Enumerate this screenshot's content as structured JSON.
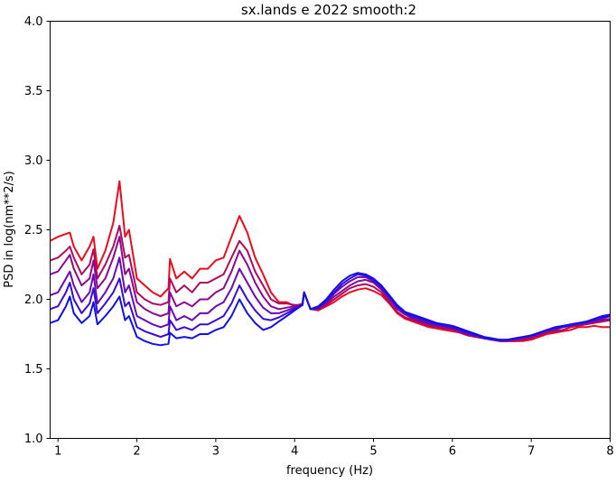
{
  "chart_data": {
    "type": "line",
    "title": "sx.lands e 2022 smooth:2",
    "xlabel": "frequency (Hz)",
    "ylabel": "PSD in log(nm**2/s)",
    "xlim": [
      0.9,
      8.0
    ],
    "ylim": [
      1.0,
      4.0
    ],
    "xticks": [
      1,
      2,
      3,
      4,
      5,
      6,
      7,
      8
    ],
    "yticks": [
      1.0,
      1.5,
      2.0,
      2.5,
      3.0,
      3.5,
      4.0
    ],
    "xtick_labels": [
      "1",
      "2",
      "3",
      "4",
      "5",
      "6",
      "7",
      "8"
    ],
    "ytick_labels": [
      "1.0",
      "1.5",
      "2.0",
      "2.5",
      "3.0",
      "3.5",
      "4.0"
    ],
    "grid": false,
    "legend": "none",
    "x": [
      0.9,
      1.0,
      1.1,
      1.15,
      1.2,
      1.3,
      1.4,
      1.45,
      1.5,
      1.6,
      1.7,
      1.78,
      1.85,
      1.9,
      2.0,
      2.1,
      2.2,
      2.3,
      2.4,
      2.42,
      2.5,
      2.6,
      2.7,
      2.8,
      2.9,
      3.0,
      3.1,
      3.2,
      3.3,
      3.4,
      3.5,
      3.6,
      3.7,
      3.8,
      3.9,
      4.0,
      4.1,
      4.12,
      4.2,
      4.3,
      4.4,
      4.5,
      4.6,
      4.7,
      4.8,
      4.9,
      5.0,
      5.1,
      5.2,
      5.3,
      5.4,
      5.5,
      5.6,
      5.7,
      5.8,
      5.9,
      6.0,
      6.1,
      6.2,
      6.3,
      6.4,
      6.5,
      6.6,
      6.7,
      6.8,
      6.9,
      7.0,
      7.1,
      7.2,
      7.3,
      7.4,
      7.5,
      7.6,
      7.7,
      7.8,
      7.9,
      8.0
    ],
    "series": [
      {
        "color": "#ee0a1c",
        "values": [
          2.42,
          2.45,
          2.47,
          2.48,
          2.38,
          2.28,
          2.38,
          2.45,
          2.22,
          2.35,
          2.55,
          2.85,
          2.45,
          2.5,
          2.15,
          2.1,
          2.05,
          2.02,
          2.08,
          2.29,
          2.15,
          2.2,
          2.15,
          2.22,
          2.22,
          2.28,
          2.3,
          2.45,
          2.6,
          2.48,
          2.3,
          2.18,
          2.05,
          1.98,
          1.98,
          1.95,
          1.97,
          2.05,
          1.93,
          1.92,
          1.95,
          1.98,
          2.02,
          2.05,
          2.07,
          2.08,
          2.06,
          2.03,
          1.97,
          1.9,
          1.86,
          1.84,
          1.82,
          1.8,
          1.79,
          1.78,
          1.77,
          1.76,
          1.74,
          1.73,
          1.72,
          1.71,
          1.7,
          1.7,
          1.7,
          1.7,
          1.71,
          1.73,
          1.75,
          1.76,
          1.77,
          1.78,
          1.8,
          1.8,
          1.81,
          1.8,
          1.8
        ]
      },
      {
        "color": "#b00a5e",
        "values": [
          2.28,
          2.3,
          2.35,
          2.38,
          2.3,
          2.18,
          2.25,
          2.36,
          2.15,
          2.25,
          2.38,
          2.53,
          2.3,
          2.32,
          2.05,
          2.0,
          1.97,
          1.96,
          1.98,
          2.15,
          2.05,
          2.1,
          2.05,
          2.12,
          2.12,
          2.15,
          2.18,
          2.3,
          2.42,
          2.35,
          2.2,
          2.1,
          2.0,
          1.97,
          1.97,
          1.96,
          1.96,
          2.05,
          1.93,
          1.93,
          1.96,
          2.0,
          2.04,
          2.08,
          2.1,
          2.11,
          2.09,
          2.05,
          1.98,
          1.91,
          1.87,
          1.85,
          1.83,
          1.81,
          1.8,
          1.79,
          1.78,
          1.76,
          1.74,
          1.73,
          1.72,
          1.71,
          1.7,
          1.7,
          1.7,
          1.71,
          1.72,
          1.74,
          1.76,
          1.77,
          1.78,
          1.8,
          1.81,
          1.82,
          1.83,
          1.84,
          1.85
        ]
      },
      {
        "color": "#8a0a90",
        "values": [
          2.18,
          2.2,
          2.28,
          2.32,
          2.22,
          2.1,
          2.15,
          2.28,
          2.08,
          2.15,
          2.3,
          2.45,
          2.18,
          2.22,
          1.98,
          1.93,
          1.9,
          1.88,
          1.9,
          2.05,
          1.95,
          1.98,
          1.95,
          2.0,
          2.0,
          2.05,
          2.08,
          2.2,
          2.35,
          2.25,
          2.12,
          2.02,
          1.95,
          1.93,
          1.94,
          1.95,
          1.96,
          2.05,
          1.93,
          1.93,
          1.97,
          2.02,
          2.06,
          2.1,
          2.13,
          2.14,
          2.12,
          2.07,
          2.0,
          1.93,
          1.89,
          1.86,
          1.84,
          1.82,
          1.81,
          1.8,
          1.79,
          1.77,
          1.75,
          1.74,
          1.72,
          1.71,
          1.7,
          1.7,
          1.71,
          1.72,
          1.73,
          1.75,
          1.77,
          1.78,
          1.8,
          1.81,
          1.82,
          1.83,
          1.84,
          1.85,
          1.86
        ]
      },
      {
        "color": "#6a0ab8",
        "values": [
          2.03,
          2.05,
          2.15,
          2.2,
          2.1,
          1.98,
          2.05,
          2.18,
          1.97,
          2.05,
          2.15,
          2.3,
          2.05,
          2.1,
          1.88,
          1.85,
          1.82,
          1.8,
          1.82,
          1.95,
          1.85,
          1.88,
          1.85,
          1.9,
          1.9,
          1.95,
          1.98,
          2.08,
          2.22,
          2.12,
          2.02,
          1.94,
          1.9,
          1.9,
          1.92,
          1.94,
          1.96,
          2.05,
          1.93,
          1.94,
          1.98,
          2.04,
          2.09,
          2.13,
          2.16,
          2.16,
          2.13,
          2.08,
          2.01,
          1.94,
          1.9,
          1.87,
          1.85,
          1.83,
          1.82,
          1.81,
          1.79,
          1.77,
          1.75,
          1.74,
          1.72,
          1.71,
          1.7,
          1.71,
          1.72,
          1.73,
          1.74,
          1.76,
          1.78,
          1.79,
          1.8,
          1.81,
          1.82,
          1.83,
          1.85,
          1.86,
          1.88
        ]
      },
      {
        "color": "#3a0ad8",
        "values": [
          1.93,
          1.95,
          2.05,
          2.12,
          2.0,
          1.9,
          1.97,
          2.08,
          1.9,
          1.97,
          2.05,
          2.15,
          1.95,
          1.98,
          1.8,
          1.77,
          1.75,
          1.73,
          1.75,
          1.85,
          1.78,
          1.8,
          1.78,
          1.82,
          1.82,
          1.85,
          1.88,
          1.97,
          2.1,
          2.0,
          1.92,
          1.86,
          1.85,
          1.87,
          1.9,
          1.93,
          1.96,
          2.05,
          1.93,
          1.94,
          1.99,
          2.05,
          2.11,
          2.15,
          2.18,
          2.17,
          2.14,
          2.09,
          2.02,
          1.95,
          1.9,
          1.88,
          1.86,
          1.84,
          1.82,
          1.81,
          1.8,
          1.78,
          1.76,
          1.74,
          1.72,
          1.71,
          1.71,
          1.71,
          1.72,
          1.73,
          1.74,
          1.76,
          1.78,
          1.79,
          1.8,
          1.82,
          1.83,
          1.84,
          1.85,
          1.87,
          1.88
        ]
      },
      {
        "color": "#1010e8",
        "values": [
          1.83,
          1.85,
          1.95,
          2.02,
          1.9,
          1.83,
          1.88,
          1.98,
          1.82,
          1.88,
          1.95,
          2.02,
          1.85,
          1.88,
          1.73,
          1.7,
          1.68,
          1.67,
          1.68,
          1.76,
          1.72,
          1.73,
          1.72,
          1.75,
          1.75,
          1.78,
          1.8,
          1.88,
          2.0,
          1.9,
          1.83,
          1.78,
          1.8,
          1.84,
          1.88,
          1.92,
          1.96,
          2.05,
          1.93,
          1.95,
          2.0,
          2.07,
          2.13,
          2.17,
          2.19,
          2.18,
          2.15,
          2.1,
          2.03,
          1.96,
          1.91,
          1.89,
          1.87,
          1.85,
          1.83,
          1.82,
          1.81,
          1.79,
          1.77,
          1.75,
          1.73,
          1.72,
          1.71,
          1.71,
          1.72,
          1.73,
          1.74,
          1.76,
          1.78,
          1.8,
          1.81,
          1.82,
          1.83,
          1.84,
          1.86,
          1.88,
          1.89
        ]
      }
    ]
  }
}
